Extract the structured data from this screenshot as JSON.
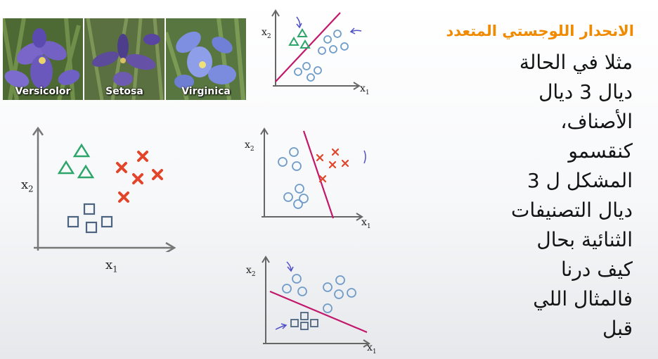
{
  "photos": [
    {
      "label": "Versicolor"
    },
    {
      "label": "Setosa"
    },
    {
      "label": "Virginica"
    }
  ],
  "axes": {
    "x1": "x",
    "x2": "x",
    "sub1": "1",
    "sub2": "2"
  },
  "slide": {
    "title": "الانحدار اللوجستي المتعدد",
    "lines": [
      "مثلا في الحالة",
      "ديال 3 ديال",
      "الأصناف،",
      "كنقسمو",
      "المشكل ل 3",
      "ديال التصنيفات",
      "الثنائية بحال",
      "كيف درنا",
      "فالمثال اللي",
      "قبل"
    ]
  },
  "colors": {
    "title": "#f08a00",
    "triangles": "#2ea56a",
    "crosses": "#e2452a",
    "squares": "#4d6480",
    "circles": "#6f9cc8",
    "boundary": "#c2186b"
  }
}
